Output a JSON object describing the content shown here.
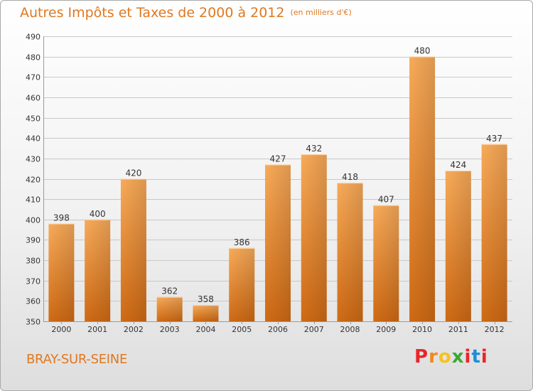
{
  "header": {
    "title": "Autres Impôts et Taxes de 2000 à 2012",
    "unit": "(en milliers d'€)"
  },
  "footer": {
    "city": "BRAY-SUR-SEINE",
    "logo": "Proxiti",
    "logo_colors": [
      "#e8262b",
      "#f08a1d",
      "#f6c21c",
      "#3aa935",
      "#e8262b",
      "#1d8fd8",
      "#e8262b"
    ]
  },
  "colors": {
    "accent": "#e07820",
    "bar_light": "#f8ab5a",
    "bar_dark": "#cf6a14",
    "grid": "#c8c8c8"
  },
  "chart_data": {
    "type": "bar",
    "categories": [
      "2000",
      "2001",
      "2002",
      "2003",
      "2004",
      "2005",
      "2006",
      "2007",
      "2008",
      "2009",
      "2010",
      "2011",
      "2012"
    ],
    "values": [
      398,
      400,
      420,
      362,
      358,
      386,
      427,
      432,
      418,
      407,
      480,
      424,
      437
    ],
    "title": "Autres Impôts et Taxes de 2000 à 2012",
    "xlabel": "",
    "ylabel": "",
    "ylim": [
      350,
      490
    ],
    "yticks": [
      350,
      360,
      370,
      380,
      390,
      400,
      410,
      420,
      430,
      440,
      450,
      460,
      470,
      480,
      490
    ],
    "grid": true,
    "data_labels": true
  }
}
